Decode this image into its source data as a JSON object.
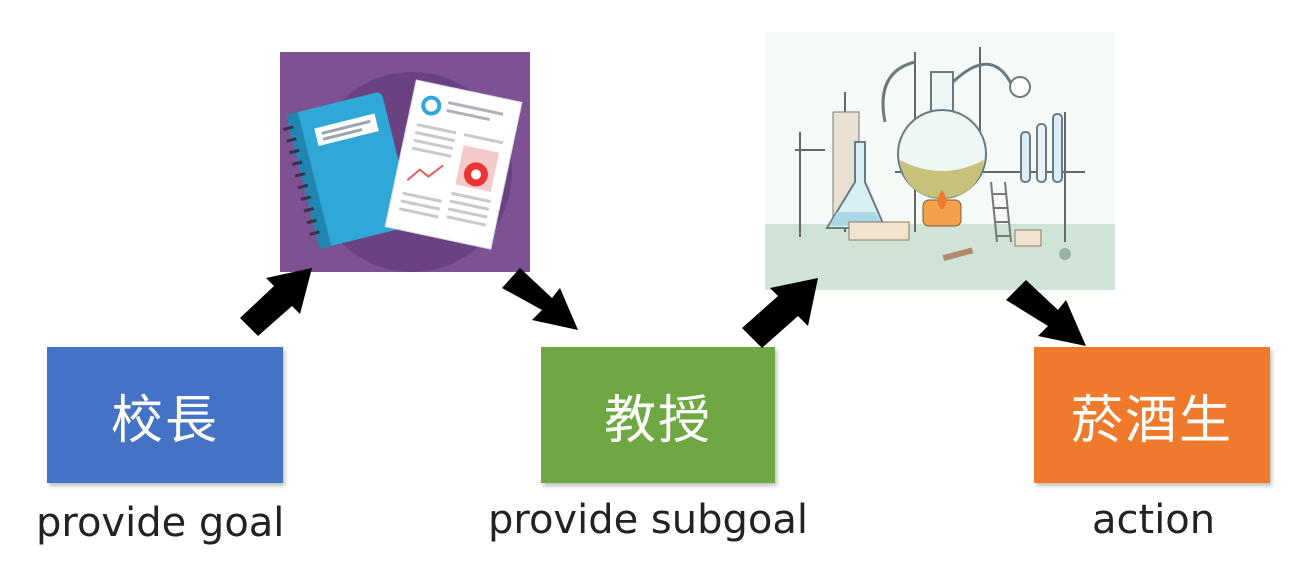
{
  "nodes": [
    {
      "label": "校長",
      "caption": "provide goal",
      "color": "#4473c5"
    },
    {
      "label": "教授",
      "caption": "provide subgoal",
      "color": "#6fa843"
    },
    {
      "label": "菸酒生",
      "caption": "action",
      "color": "#f07a2c"
    }
  ],
  "images": {
    "documents": {
      "icon": "notebook-report-illustration",
      "bg_color": "#7e5193"
    },
    "lab": {
      "icon": "laboratory-illustration"
    }
  },
  "arrow_color": "#000000"
}
